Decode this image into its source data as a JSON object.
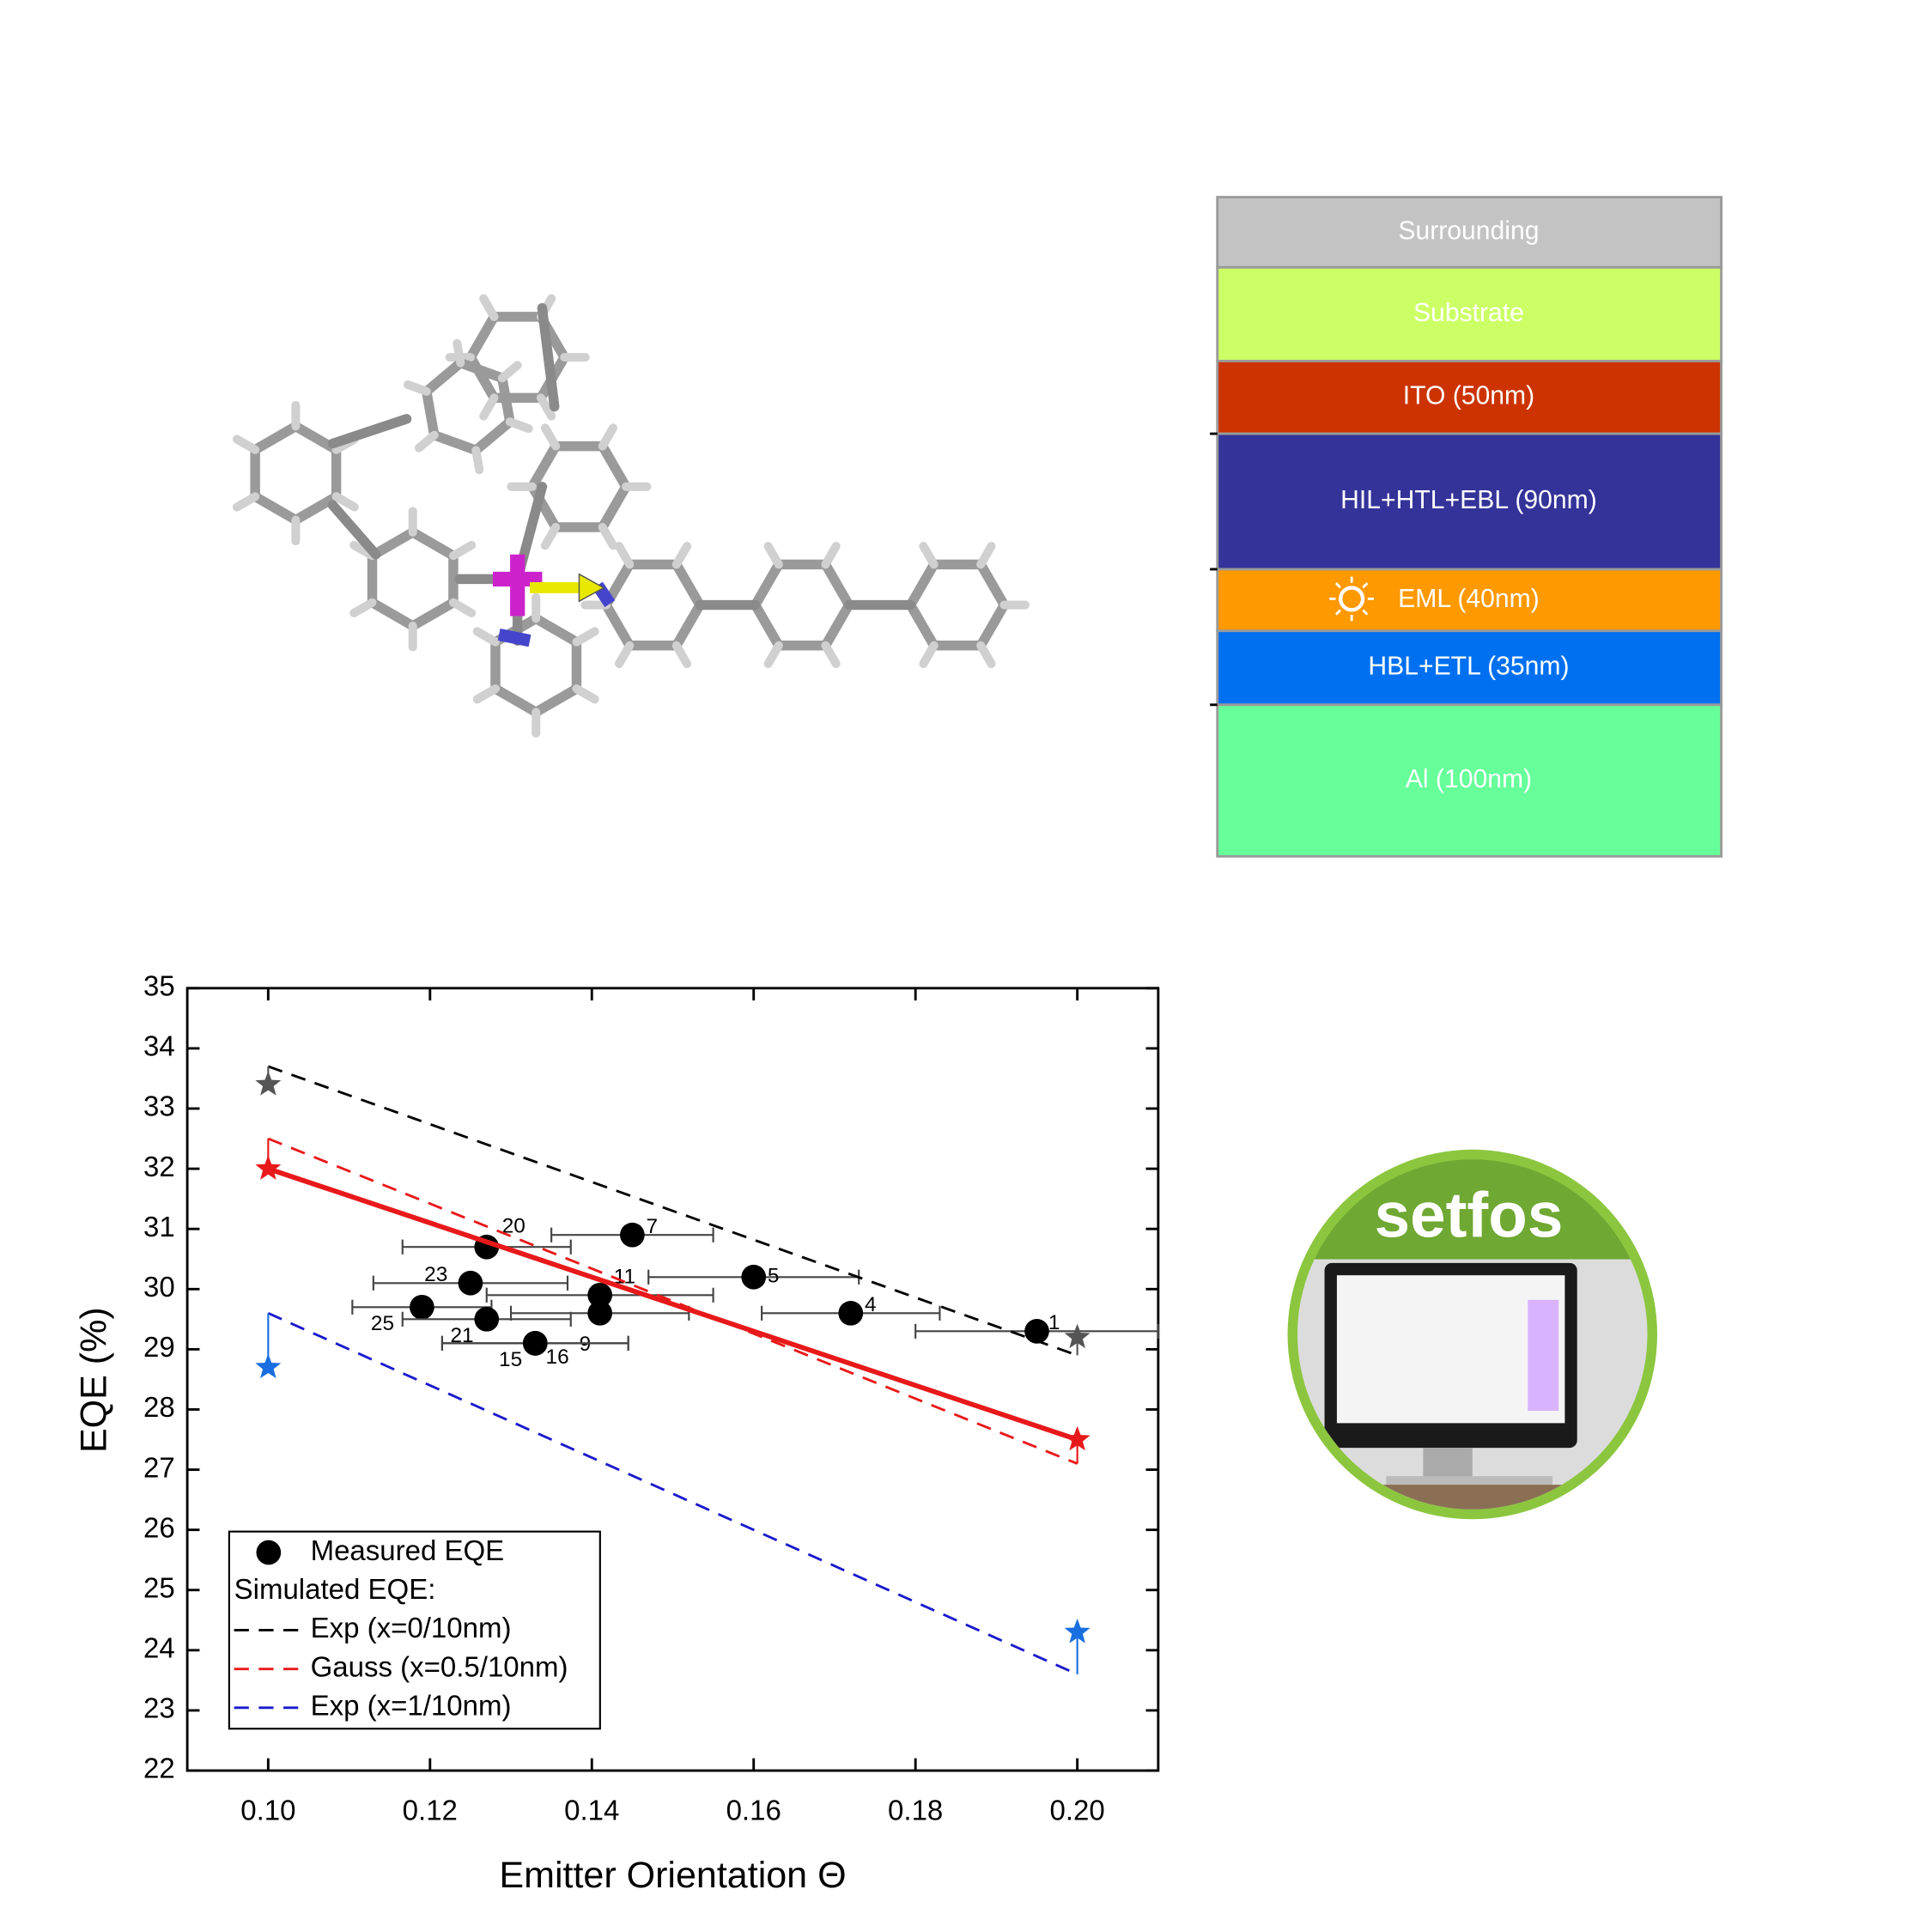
{
  "layer_stack": {
    "layers": [
      {
        "label": "Surrounding",
        "color": "#c3c3c3"
      },
      {
        "label": "Substrate",
        "color": "#ccff66"
      },
      {
        "label": "ITO (50nm)",
        "color": "#cc3300"
      },
      {
        "label": "HIL+HTL+EBL (90nm)",
        "color": "#333399"
      },
      {
        "label": "EML (40nm)",
        "color": "#ff9900"
      },
      {
        "label": "HBL+ETL (35nm)",
        "color": "#0070f0"
      },
      {
        "label": "Al (100nm)",
        "color": "#66ff99"
      }
    ]
  },
  "logo": {
    "text": "setfos"
  },
  "chart_data": {
    "type": "scatter",
    "x_label": "Emitter Orientation Θ",
    "y_label": "EQE (%)",
    "xlim": [
      0.09,
      0.21
    ],
    "ylim": [
      22,
      35
    ],
    "xticks": [
      {
        "value": 0.1,
        "label": "0.10"
      },
      0.12,
      0.14,
      0.16,
      0.18,
      {
        "value": 0.2,
        "label": "0.20"
      }
    ],
    "yticks": [
      22,
      23,
      24,
      25,
      26,
      27,
      28,
      29,
      30,
      31,
      32,
      33,
      34,
      35
    ],
    "legend": "lower left",
    "legend_heading": "Simulated EQE:",
    "series": [
      {
        "name": "Measured EQE",
        "type": "scatter",
        "color": "#000000",
        "x": [
          0.195,
          0.172,
          0.16,
          0.145,
          0.141,
          0.141,
          0.127,
          0.125,
          0.119,
          0.127,
          0.133,
          0.133
        ],
        "values": [
          29.3,
          29.6,
          30.2,
          30.9,
          29.9,
          29.6,
          30.7,
          30.1,
          29.7,
          29.5,
          29.1,
          29.1
        ],
        "xerr": [
          0.015,
          0.011,
          0.013,
          0.01,
          0.014,
          0.011,
          0.0104,
          0.012,
          0.0086,
          0.0104,
          0.0115,
          0.0115
        ],
        "point_labels": [
          "1",
          "4",
          "5",
          "7",
          "11",
          "9",
          "20",
          "23",
          "25",
          "21",
          "15",
          "16"
        ]
      },
      {
        "name": "Exp (x=0/10nm)",
        "type": "line",
        "dash": true,
        "color": "#000000",
        "x": [
          0.1,
          0.2
        ],
        "values": [
          33.7,
          28.9
        ]
      },
      {
        "name": "Gauss (x=0.5/10nm)",
        "type": "line",
        "dash": true,
        "color": "#e8191a",
        "x": [
          0.1,
          0.2
        ],
        "values": [
          32.5,
          27.1
        ]
      },
      {
        "name": "Exp (x=1/10nm)",
        "type": "line",
        "dash": true,
        "color": "#1a1acc",
        "x": [
          0.1,
          0.2
        ],
        "values": [
          29.6,
          23.6
        ]
      },
      {
        "type": "line",
        "dash": false,
        "color": "#e8191a",
        "x": [
          0.1,
          0.2
        ],
        "values": [
          32.0,
          27.5
        ]
      },
      {
        "type": "star",
        "color": "#555555",
        "x": [
          0.1,
          0.2
        ],
        "values": [
          33.4,
          29.2
        ]
      },
      {
        "type": "star",
        "color": "#e8191a",
        "x": [
          0.1,
          0.2
        ],
        "values": [
          32.0,
          27.5
        ]
      },
      {
        "type": "star",
        "color": "#1a6fe0",
        "x": [
          0.1,
          0.2
        ],
        "values": [
          28.7,
          24.3
        ]
      }
    ]
  }
}
